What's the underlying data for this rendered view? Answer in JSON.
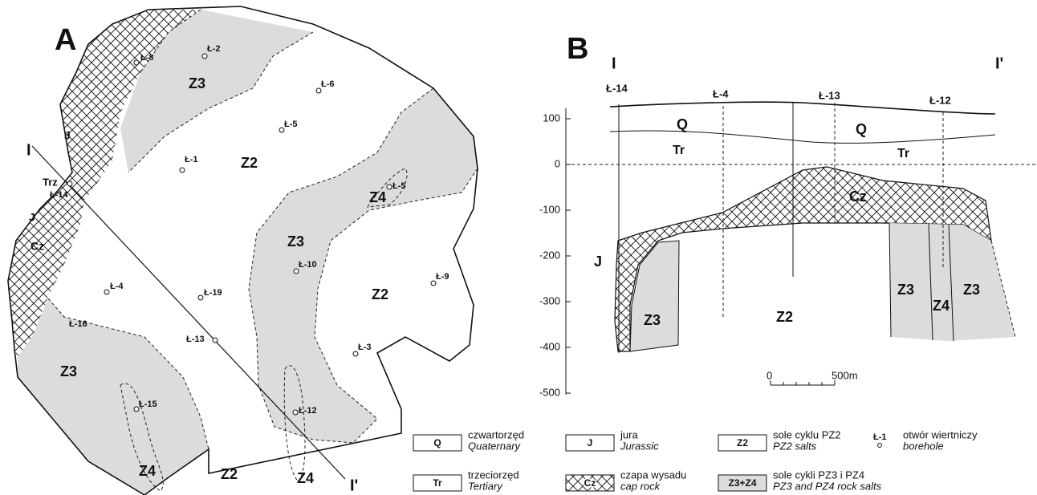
{
  "map": {
    "label": "A",
    "ends": [
      "I",
      "I'"
    ],
    "units": [
      "Z3",
      "Z2",
      "Z4",
      "Z3",
      "Z2",
      "Z3",
      "Z4",
      "Z2",
      "Z4",
      "J",
      "J",
      "Cz",
      "Trz"
    ],
    "boreholes": [
      "Ł-8",
      "Ł-2",
      "Ł-6",
      "Ł-5",
      "Ł-1",
      "Ł-14",
      "Ł-5",
      "Ł-10",
      "Ł-9",
      "Ł-4",
      "Ł-19",
      "Ł-16",
      "Ł-13",
      "Ł-3",
      "Ł-15",
      "Ł-12"
    ]
  },
  "section": {
    "label": "B",
    "ends": [
      "I",
      "I'"
    ],
    "boreholes": [
      "Ł-14",
      "Ł-4",
      "Ł-13",
      "Ł-12"
    ],
    "yticks": [
      100,
      0,
      -100,
      -200,
      -300,
      -400,
      -500
    ],
    "units": [
      "Q",
      "Q",
      "Tr",
      "Tr",
      "Cz",
      "J",
      "Z3",
      "Z2",
      "Z3",
      "Z4",
      "Z3"
    ],
    "scale": [
      "0",
      "500m"
    ]
  },
  "legend": [
    {
      "symbol": "Q",
      "pl": "czwartorzęd",
      "en": "Quaternary"
    },
    {
      "symbol": "Tr",
      "pl": "trzeciorzęd",
      "en": "Tertiary"
    },
    {
      "symbol": "J",
      "pl": "jura",
      "en": "Jurassic"
    },
    {
      "symbol": "Cz",
      "pl": "czapa wysadu",
      "en": "cap rock"
    },
    {
      "symbol": "Z2",
      "pl": "sole cyklu PZ2",
      "en": "PZ2 salts"
    },
    {
      "symbol": "Z3+Z4",
      "pl": "sole cykli PZ3 i PZ4",
      "en": "PZ3 and PZ4 rock salts"
    },
    {
      "symbol": "Ł-1",
      "pl": "otwór wiertniczy",
      "en": "borehole"
    }
  ]
}
